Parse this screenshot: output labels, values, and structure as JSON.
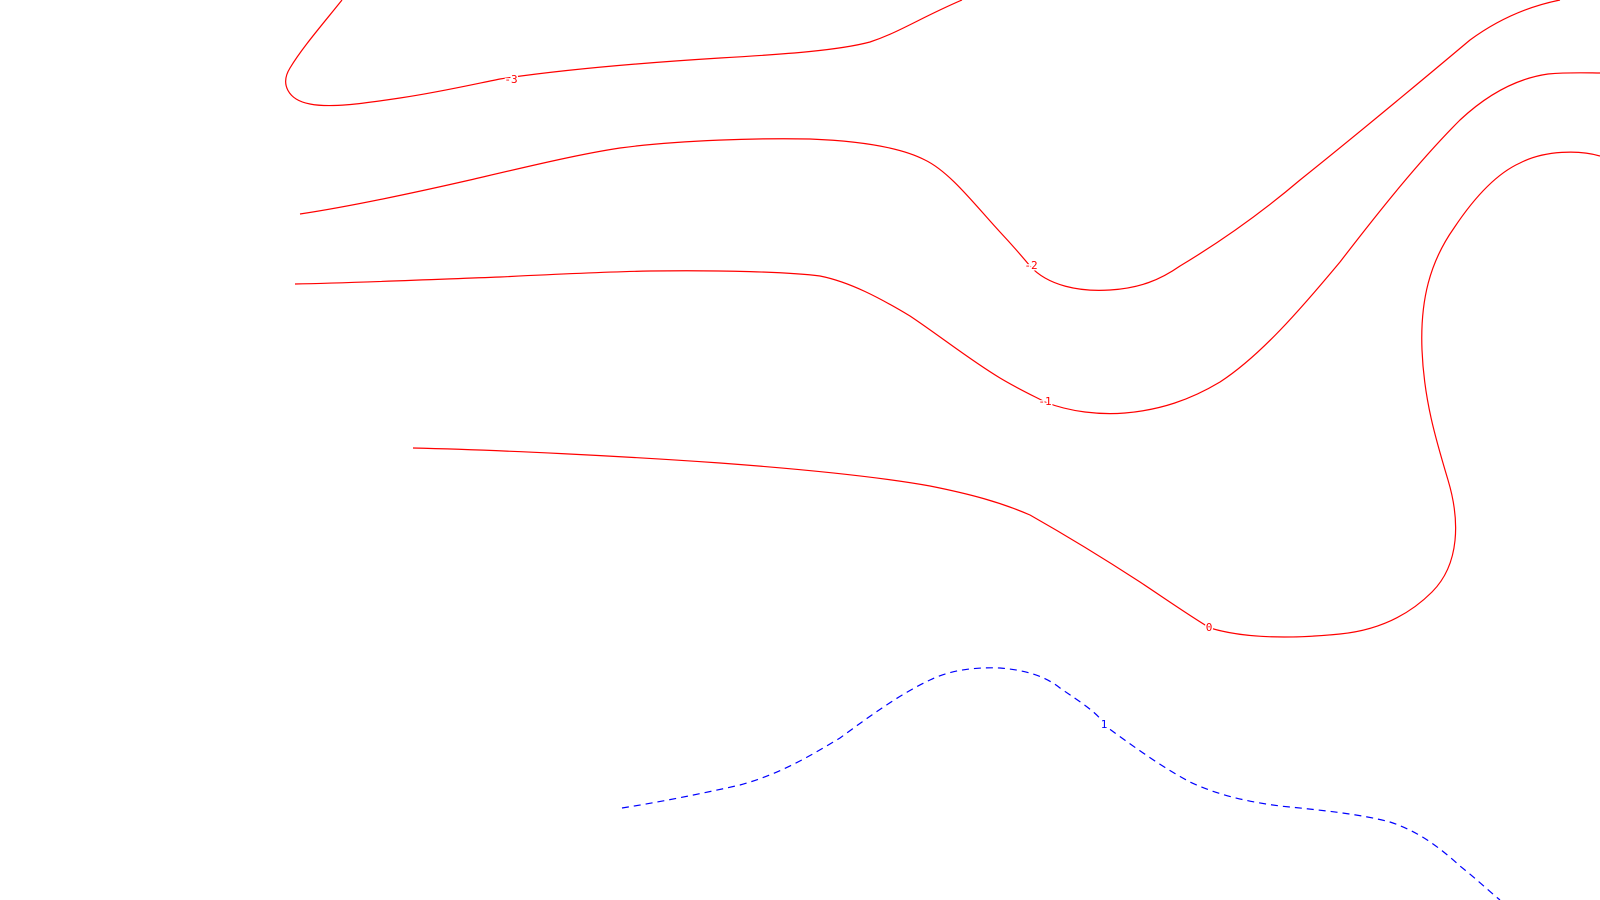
{
  "chart_data": {
    "type": "contour",
    "title": "",
    "xlabel": "",
    "ylabel": "",
    "grid": false,
    "legend": "none",
    "levels": [
      {
        "value": -3,
        "label": "-3",
        "color": "#ff0000",
        "style": "solid"
      },
      {
        "value": -2,
        "label": "-2",
        "color": "#ff0000",
        "style": "solid"
      },
      {
        "value": -1,
        "label": "-1",
        "color": "#ff0000",
        "style": "solid"
      },
      {
        "value": 0,
        "label": "0",
        "color": "#ff0000",
        "style": "solid"
      },
      {
        "value": 1,
        "label": "1",
        "color": "#0000ff",
        "style": "dashed"
      }
    ]
  }
}
